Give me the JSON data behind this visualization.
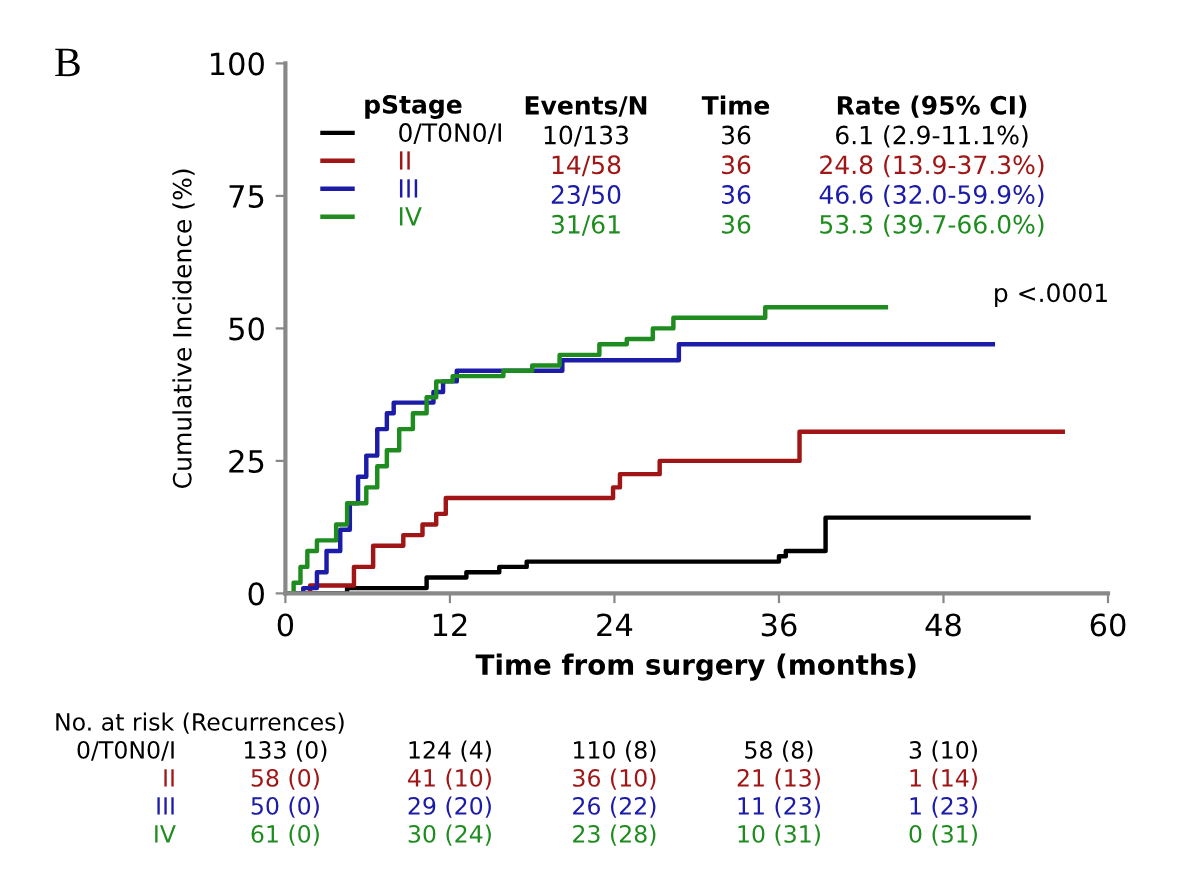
{
  "chart_data": {
    "type": "step",
    "title": "B",
    "xlabel": "Time from surgery (months)",
    "ylabel": "Cumulative Incidence (%)",
    "legend_title": "pStage",
    "legend": "top",
    "grid": false,
    "marker": "none",
    "line_style": "solid",
    "xlim": [
      0,
      60
    ],
    "xticks": [
      0,
      12,
      24,
      36,
      48,
      60
    ],
    "ylim": [
      0,
      100
    ],
    "yticks": [
      0,
      25,
      50,
      75,
      100
    ],
    "series": [
      {
        "name": "0/T0N0/I",
        "color": "#000000",
        "x": [
          0,
          4.5,
          10.3,
          13.2,
          15.6,
          17.6,
          36,
          36.5,
          39.4,
          54.2
        ],
        "values": [
          0,
          1,
          3,
          4,
          5,
          6,
          7,
          8,
          14.3,
          14.3
        ]
      },
      {
        "name": "II",
        "color": "#a01515",
        "x": [
          0,
          1.8,
          5,
          6.4,
          8.6,
          10,
          11,
          11.7,
          23.9,
          24.4,
          27.3,
          37.5,
          56.7
        ],
        "values": [
          0,
          1.5,
          5,
          9,
          11,
          13,
          15,
          18,
          20,
          22.5,
          25,
          30.5,
          30.5
        ]
      },
      {
        "name": "III",
        "color": "#1c1ca8",
        "x": [
          0,
          1.3,
          2.3,
          3,
          4,
          4.7,
          5.3,
          5.9,
          6.7,
          7.4,
          7.9,
          10.8,
          11.5,
          12.5,
          20.2,
          28.7,
          51.6
        ],
        "values": [
          0,
          1,
          4,
          8,
          12,
          17,
          22,
          26,
          31,
          34,
          36,
          38,
          40,
          42,
          44,
          47,
          47
        ]
      },
      {
        "name": "IV",
        "color": "#1e8c1e",
        "x": [
          0,
          0.6,
          1.1,
          1.6,
          2.3,
          3.7,
          4.5,
          5.9,
          6.7,
          7.4,
          8.3,
          9.3,
          10.3,
          11,
          12.2,
          15.9,
          18,
          20,
          22.9,
          24.9,
          26.8,
          28.3,
          35,
          43.8
        ],
        "values": [
          0,
          2,
          5,
          8,
          10,
          13,
          17,
          20,
          24,
          27,
          31,
          34,
          37,
          40,
          41,
          42,
          43,
          45,
          47,
          48,
          50,
          52,
          54,
          54
        ]
      }
    ],
    "annotations": [
      "p <.0001",
      "Events/N",
      "Time",
      "Rate (95% CI)",
      "10/133",
      "36",
      "6.1 (2.9-11.1%)",
      "14/58",
      "36",
      "24.8 (13.9-37.3%)",
      "23/50",
      "36",
      "46.6 (32.0-59.9%)",
      "31/61",
      "36",
      "53.3 (39.7-66.0%)",
      "No. at risk (Recurrences)",
      "0/T0N0/I",
      "133 (0)",
      "124 (4)",
      "110 (8)",
      "58 (8)",
      "3 (10)",
      "II",
      "58 (0)",
      "41 (10)",
      "36 (10)",
      "21 (13)",
      "1 (14)",
      "III",
      "50 (0)",
      "29 (20)",
      "26 (22)",
      "11 (23)",
      "1 (23)",
      "IV",
      "61 (0)",
      "30 (24)",
      "23 (28)",
      "10 (31)",
      "0 (31)"
    ]
  }
}
